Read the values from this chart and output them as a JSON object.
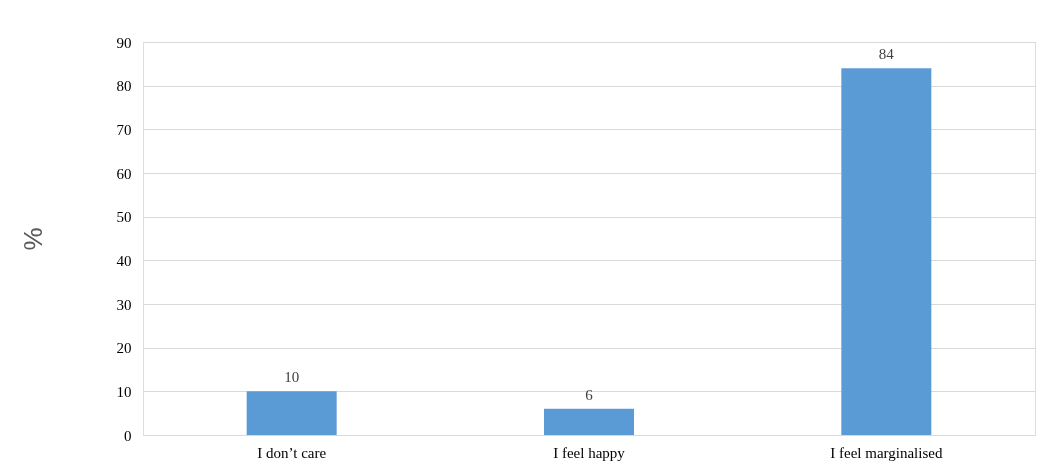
{
  "chart_data": {
    "type": "bar",
    "ylabel": "%",
    "categories": [
      "I don’t care",
      "I feel happy",
      "I feel marginalised"
    ],
    "values": [
      10,
      6,
      84
    ],
    "color": "#5b9bd5",
    "ylim": [
      0,
      90
    ],
    "yticks": [
      0,
      10,
      20,
      30,
      40,
      50,
      60,
      70,
      80,
      90
    ],
    "grid": "y",
    "data_labels": true
  }
}
